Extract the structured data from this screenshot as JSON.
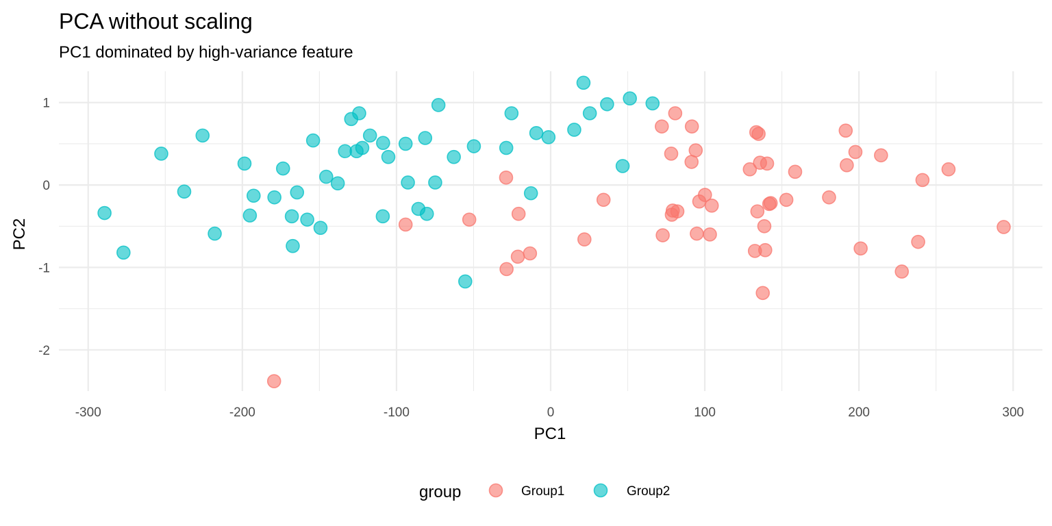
{
  "chart_data": {
    "type": "scatter",
    "title": "PCA without scaling",
    "subtitle": "PC1 dominated by high-variance feature",
    "xlabel": "PC1",
    "ylabel": "PC2",
    "xlim": [
      -319,
      319
    ],
    "ylim": [
      -2.5,
      1.38
    ],
    "x_ticks": [
      -300,
      -200,
      -100,
      0,
      100,
      200,
      300
    ],
    "y_ticks": [
      -2,
      -1,
      0,
      1
    ],
    "x_tick_labels": [
      "-300",
      "-200",
      "-100",
      "0",
      "100",
      "200",
      "300"
    ],
    "y_tick_labels": [
      "-2",
      "-1",
      "0",
      "1"
    ],
    "grid": true,
    "legend": {
      "title": "group",
      "position": "bottom"
    },
    "colors": {
      "Group1": "#F8766D",
      "Group2": "#00BFC4"
    },
    "series": [
      {
        "name": "Group1",
        "points": [
          [
            -179.4,
            -2.38
          ],
          [
            -94.1,
            -0.48
          ],
          [
            -52.8,
            -0.42
          ],
          [
            -28.9,
            0.09
          ],
          [
            -28.6,
            -1.02
          ],
          [
            -20.8,
            -0.35
          ],
          [
            -21.3,
            -0.87
          ],
          [
            -13.4,
            -0.83
          ],
          [
            21.9,
            -0.66
          ],
          [
            34.3,
            -0.18
          ],
          [
            72.1,
            0.71
          ],
          [
            72.7,
            -0.61
          ],
          [
            78.2,
            0.38
          ],
          [
            78.6,
            -0.36
          ],
          [
            79.2,
            -0.31
          ],
          [
            80.8,
            0.87
          ],
          [
            82.2,
            -0.32
          ],
          [
            91.6,
            0.71
          ],
          [
            91.4,
            0.28
          ],
          [
            94.1,
            0.42
          ],
          [
            94.8,
            -0.59
          ],
          [
            96.4,
            -0.2
          ],
          [
            100.1,
            -0.12
          ],
          [
            103.3,
            -0.6
          ],
          [
            104.5,
            -0.25
          ],
          [
            129.2,
            0.19
          ],
          [
            132.5,
            -0.8
          ],
          [
            133.4,
            0.64
          ],
          [
            134.1,
            -0.32
          ],
          [
            134.9,
            0.62
          ],
          [
            135.8,
            0.27
          ],
          [
            137.6,
            -1.31
          ],
          [
            138.6,
            -0.5
          ],
          [
            139.2,
            -0.79
          ],
          [
            140.4,
            0.26
          ],
          [
            141.8,
            -0.23
          ],
          [
            142.7,
            -0.22
          ],
          [
            152.9,
            -0.18
          ],
          [
            158.6,
            0.16
          ],
          [
            180.6,
            -0.15
          ],
          [
            191.4,
            0.66
          ],
          [
            192.1,
            0.24
          ],
          [
            197.7,
            0.4
          ],
          [
            201.1,
            -0.77
          ],
          [
            214.3,
            0.36
          ],
          [
            227.8,
            -1.05
          ],
          [
            238.4,
            -0.69
          ],
          [
            241.2,
            0.06
          ],
          [
            258.1,
            0.19
          ],
          [
            293.9,
            -0.51
          ]
        ]
      },
      {
        "name": "Group2",
        "points": [
          [
            -289.4,
            -0.34
          ],
          [
            -277.1,
            -0.82
          ],
          [
            -252.6,
            0.38
          ],
          [
            -237.7,
            -0.08
          ],
          [
            -225.8,
            0.6
          ],
          [
            -217.9,
            -0.59
          ],
          [
            -198.6,
            0.26
          ],
          [
            -195.1,
            -0.37
          ],
          [
            -192.7,
            -0.13
          ],
          [
            -179.2,
            -0.15
          ],
          [
            -173.6,
            0.2
          ],
          [
            -167.9,
            -0.38
          ],
          [
            -167.3,
            -0.74
          ],
          [
            -164.5,
            -0.09
          ],
          [
            -157.9,
            -0.42
          ],
          [
            -154.1,
            0.54
          ],
          [
            -149.3,
            -0.52
          ],
          [
            -145.6,
            0.1
          ],
          [
            -138.1,
            0.02
          ],
          [
            -133.4,
            0.41
          ],
          [
            -129.4,
            0.8
          ],
          [
            -125.9,
            0.41
          ],
          [
            -124.2,
            0.87
          ],
          [
            -122.2,
            0.45
          ],
          [
            -117.2,
            0.6
          ],
          [
            -108.7,
            0.51
          ],
          [
            -108.9,
            -0.38
          ],
          [
            -105.3,
            0.34
          ],
          [
            -94.1,
            0.5
          ],
          [
            -92.6,
            0.03
          ],
          [
            -85.8,
            -0.29
          ],
          [
            -81.4,
            0.57
          ],
          [
            -80.3,
            -0.35
          ],
          [
            -74.9,
            0.03
          ],
          [
            -72.8,
            0.97
          ],
          [
            -62.8,
            0.34
          ],
          [
            -55.4,
            -1.17
          ],
          [
            -49.8,
            0.47
          ],
          [
            -28.8,
            0.45
          ],
          [
            -25.4,
            0.87
          ],
          [
            -12.8,
            -0.1
          ],
          [
            -9.3,
            0.63
          ],
          [
            -1.4,
            0.58
          ],
          [
            15.3,
            0.67
          ],
          [
            21.3,
            1.24
          ],
          [
            25.4,
            0.87
          ],
          [
            36.6,
            0.98
          ],
          [
            46.7,
            0.23
          ],
          [
            51.4,
            1.05
          ],
          [
            66.1,
            0.99
          ]
        ]
      }
    ]
  }
}
